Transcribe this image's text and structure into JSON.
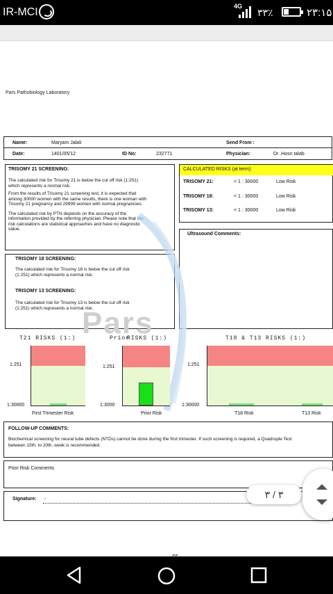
{
  "status_bar": {
    "carrier": "IR-MCI",
    "network": "4G",
    "battery_pct": "۳۳٪",
    "time": "۲۳:۱۵"
  },
  "lab_name": "Pars Pathobiology Laboratory",
  "patient": {
    "name_label": "Name:",
    "name": "Maryam Jalali",
    "send_from_label": "Send From :",
    "date_label": "Date:",
    "date": "1401/05/12",
    "id_label": "ID No:",
    "id": "232771",
    "physician_label": "Physician:",
    "physician": "Dr .Hosn talab"
  },
  "trisomy21": {
    "title": "TRISOMY 21 SCREENING:",
    "p1a": "The calculated risk for Trisomy 21  is below the cut off risk (1:251)",
    "p1b": "which represents a normal risk.",
    "p2a": "From the results of Trisomy 21 screening test, it is expected that",
    "p2b": "among 30000 women with the same results, there is one woman with",
    "p2c": "Trisomy 21 pregnancy and 29999 women with normal pregnancies.",
    "p3a": "The calculated risk by PTN depends on the accuracy of the",
    "p3b": "information provided by the referring physician. Please note that the",
    "p3c": "risk calculations are statistical approaches and have no diagnostic",
    "p3d": "value."
  },
  "trisomy18": {
    "title": "TRISOMY 18 SCREENING:",
    "p1a": "The calculated risk for Trisomy 18  is below the cut off risk",
    "p1b": "(1:251) which represents a normal risk."
  },
  "trisomy13": {
    "title": "TRISOMY 13 SCREENING:",
    "p1a": "The calculated risk for Trisomy 13  is below the cut off risk",
    "p1b": "(1:251) which represents a normal risk."
  },
  "calculated_risks": {
    "title": "CALCULATED RISKS (at term):",
    "rows": [
      {
        "label": "TRISOMY 21:",
        "value": "< 1 : 30000",
        "level": "Low Risk"
      },
      {
        "label": "TRISOMY 18:",
        "value": "< 1 : 30000",
        "level": "Low Risk"
      },
      {
        "label": "TRISOMY 13:",
        "value": "< 1 : 30000",
        "level": "Low Risk"
      }
    ]
  },
  "ultrasound": {
    "title": "Ultrasound Comments:"
  },
  "watermark": "Pars",
  "charts_header": {
    "t21": "T21  RISKS (1:)",
    "prior_a": "Prior",
    "prior_b": "RISKS (1:)",
    "t18": "T18 & T13 RISKS (1:)"
  },
  "chart_data": [
    {
      "type": "bar",
      "title": "T21  RISKS (1:)",
      "y_ticks": [
        "1:251",
        "1:30000"
      ],
      "categories": [
        "First Trimester Risk"
      ],
      "values": [
        "1:30000"
      ],
      "zones": {
        "high": "#f58585",
        "low": "#e8f8d0"
      }
    },
    {
      "type": "bar",
      "title": "Prior  RISKS (1:)",
      "y_ticks": [
        "1:251",
        "1:3000"
      ],
      "categories": [
        "Prior Risk"
      ],
      "values_fraction_of_axis": [
        0.38
      ],
      "bar_color": "#17e017",
      "zones": {
        "high": "#f58585",
        "low": "#e8f8d0"
      }
    },
    {
      "type": "bar",
      "title": "T18 & T13 RISKS (1:)",
      "y_ticks": [
        "1:251",
        "1:30000"
      ],
      "categories": [
        "T18 Risk",
        "T13 Risk"
      ],
      "values": [
        "1:30000",
        "1:30000"
      ],
      "zones": {
        "high": "#f58585",
        "low": "#e8f8d0"
      }
    }
  ],
  "axis": {
    "t21_top": "1:251",
    "t21_bottom": "1:30000",
    "prior_top": "1:251",
    "prior_bottom": "1:3000",
    "t18_top": "1:251",
    "t18_bottom": "1:30000"
  },
  "cats": {
    "first_trimester": "First Trimester Risk",
    "prior": "Prior Risk",
    "t18": "T18 Risk",
    "t13": "T13 Risk"
  },
  "followup": {
    "title": "FOLLOW-UP COMMENTS:",
    "line1": "Biochemical screening for neural tube defects (NTDs) cannot be done during the first trimester. If such screening is required, a Quadruple Test",
    "line2": "between 15th. to 20th. week is recommended."
  },
  "prior_comments": {
    "title": "Prior Risk Comments"
  },
  "signature": {
    "label": "Signature:",
    "dash": "-"
  },
  "page_indicator": "۳ / ۳",
  "page_number": "۳۳"
}
